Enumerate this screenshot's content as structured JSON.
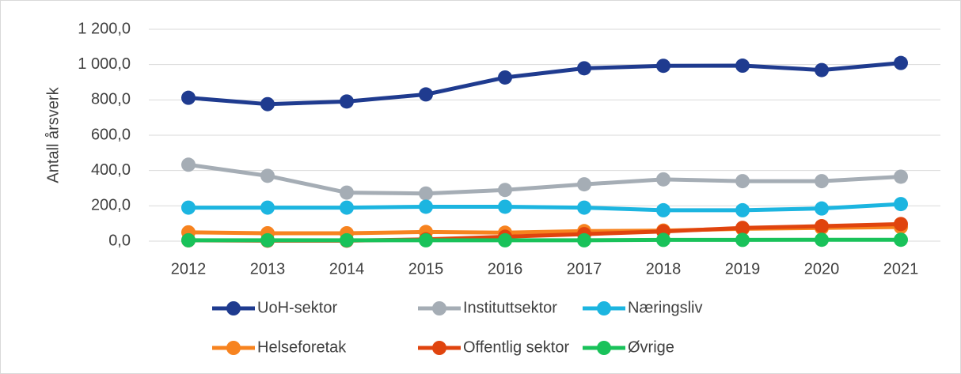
{
  "chart_data": {
    "type": "line",
    "ylabel": "Antall årsverk",
    "categories": [
      "2012",
      "2013",
      "2014",
      "2015",
      "2016",
      "2017",
      "2018",
      "2019",
      "2020",
      "2021"
    ],
    "series": [
      {
        "name": "UoH-sektor",
        "color": "#1f3b8f",
        "values": [
          812,
          776,
          791,
          831,
          927,
          979,
          993,
          994,
          969,
          1009
        ]
      },
      {
        "name": "Instituttsektor",
        "color": "#a5adb5",
        "values": [
          433,
          370,
          275,
          270,
          290,
          322,
          350,
          340,
          340,
          365
        ]
      },
      {
        "name": "Næringsliv",
        "color": "#1cb5e0",
        "values": [
          190,
          190,
          190,
          195,
          195,
          190,
          175,
          175,
          185,
          210
        ]
      },
      {
        "name": "Helseforetak",
        "color": "#f7831f",
        "values": [
          50,
          45,
          45,
          52,
          48,
          57,
          60,
          70,
          75,
          80
        ]
      },
      {
        "name": "Offentlig sektor",
        "color": "#e0440e",
        "values": [
          5,
          3,
          3,
          10,
          25,
          40,
          55,
          75,
          85,
          97
        ]
      },
      {
        "name": "Øvrige",
        "color": "#19c25a",
        "values": [
          5,
          5,
          5,
          5,
          5,
          5,
          7,
          7,
          8,
          8
        ]
      }
    ],
    "ylim": [
      0,
      1200
    ],
    "yticks": [
      {
        "value": 0,
        "label": "0,0"
      },
      {
        "value": 200,
        "label": "200,0"
      },
      {
        "value": 400,
        "label": "400,0"
      },
      {
        "value": 600,
        "label": "600,0"
      },
      {
        "value": 800,
        "label": "800,0"
      },
      {
        "value": 1000,
        "label": "1 000,0"
      },
      {
        "value": 1200,
        "label": "1 200,0"
      }
    ],
    "grid": true
  }
}
